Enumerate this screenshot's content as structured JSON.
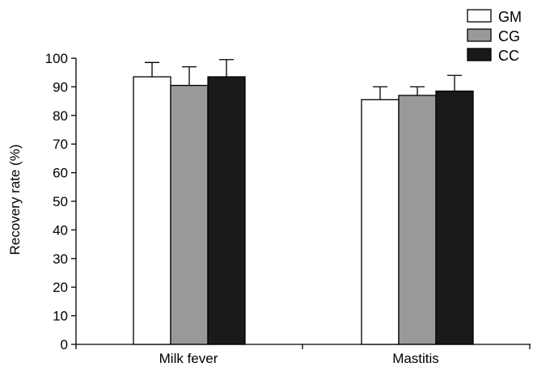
{
  "chart_data": {
    "type": "bar",
    "title": "",
    "xlabel": "",
    "ylabel": "Recovery rate (%)",
    "ylim": [
      0,
      100
    ],
    "yticks": [
      0,
      10,
      20,
      30,
      40,
      50,
      60,
      70,
      80,
      90,
      100
    ],
    "ytick_labels": [
      "0",
      "10",
      "20",
      "30",
      "40",
      "50",
      "60",
      "70",
      "80",
      "90",
      "100"
    ],
    "categories": [
      "Milk fever",
      "Mastitis"
    ],
    "series": [
      {
        "name": "GM",
        "color": "#ffffff",
        "values": [
          93.5,
          85.5
        ],
        "error": [
          5.0,
          4.5
        ]
      },
      {
        "name": "CG",
        "color": "#999999",
        "values": [
          90.5,
          87.0
        ],
        "error": [
          6.5,
          3.0
        ]
      },
      {
        "name": "CC",
        "color": "#1a1a1a",
        "values": [
          93.5,
          88.5
        ],
        "error": [
          6.0,
          5.5
        ]
      }
    ],
    "grid": false,
    "legend_position": "top-right",
    "error_bars": true
  }
}
